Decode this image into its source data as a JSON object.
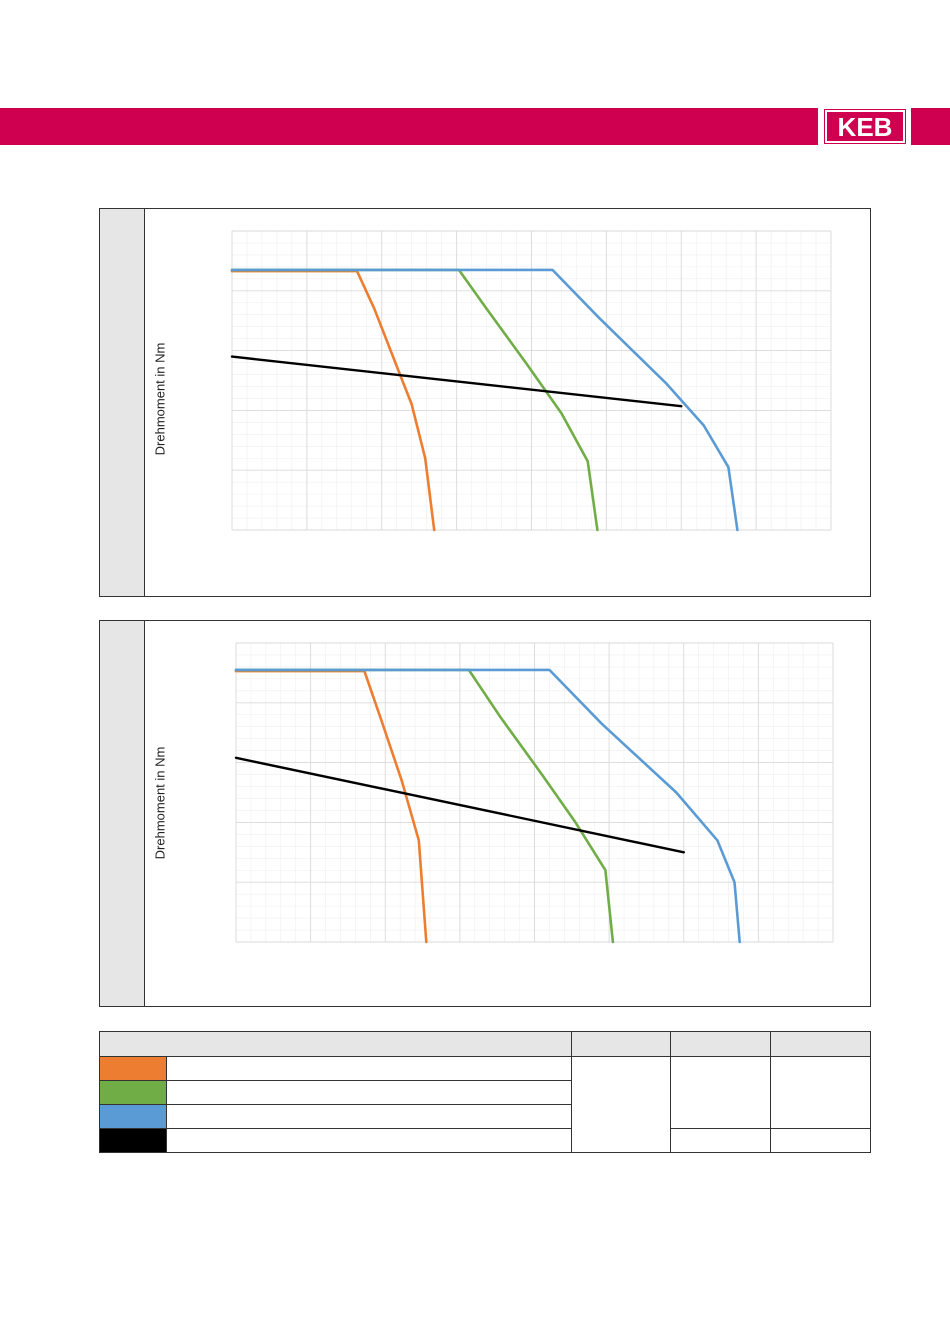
{
  "header": {
    "logo_text": "KEB",
    "brand_color": "#cf0050"
  },
  "colors": {
    "orange": "#ed7d31",
    "green": "#70ad47",
    "blue": "#5b9bd5",
    "black": "#000000",
    "grid": "#d9d9d9"
  },
  "chart_data": [
    {
      "type": "line",
      "title": "",
      "xlabel": "",
      "ylabel": "Drehmoment in Nm",
      "grid": true,
      "xlim": [
        0,
        8
      ],
      "ylim": [
        0,
        5
      ],
      "series": [
        {
          "color": "#ed7d31",
          "points": [
            [
              0,
              4.33
            ],
            [
              1.67,
              4.33
            ],
            [
              1.9,
              3.7
            ],
            [
              2.15,
              2.9
            ],
            [
              2.4,
              2.1
            ],
            [
              2.58,
              1.2
            ],
            [
              2.7,
              0
            ]
          ]
        },
        {
          "color": "#70ad47",
          "points": [
            [
              0,
              4.35
            ],
            [
              3.03,
              4.35
            ],
            [
              3.4,
              3.7
            ],
            [
              3.95,
              2.75
            ],
            [
              4.4,
              1.95
            ],
            [
              4.75,
              1.15
            ],
            [
              4.88,
              0
            ]
          ]
        },
        {
          "color": "#5b9bd5",
          "points": [
            [
              0,
              4.35
            ],
            [
              4.28,
              4.35
            ],
            [
              4.9,
              3.55
            ],
            [
              5.8,
              2.45
            ],
            [
              6.3,
              1.75
            ],
            [
              6.63,
              1.05
            ],
            [
              6.75,
              0
            ]
          ]
        },
        {
          "color": "#000000",
          "points": [
            [
              0,
              2.9
            ],
            [
              6.0,
              2.07
            ]
          ]
        }
      ]
    },
    {
      "type": "line",
      "title": "",
      "xlabel": "",
      "ylabel": "Drehmoment in Nm",
      "grid": true,
      "xlim": [
        0,
        8
      ],
      "ylim": [
        0,
        5
      ],
      "series": [
        {
          "color": "#ed7d31",
          "points": [
            [
              0,
              4.53
            ],
            [
              1.72,
              4.53
            ],
            [
              1.95,
              3.7
            ],
            [
              2.22,
              2.7
            ],
            [
              2.45,
              1.7
            ],
            [
              2.55,
              0
            ]
          ]
        },
        {
          "color": "#70ad47",
          "points": [
            [
              0,
              4.55
            ],
            [
              3.12,
              4.55
            ],
            [
              3.55,
              3.75
            ],
            [
              4.1,
              2.8
            ],
            [
              4.55,
              2.0
            ],
            [
              4.95,
              1.2
            ],
            [
              5.05,
              0
            ]
          ]
        },
        {
          "color": "#5b9bd5",
          "points": [
            [
              0,
              4.55
            ],
            [
              4.2,
              4.55
            ],
            [
              4.9,
              3.65
            ],
            [
              5.9,
              2.5
            ],
            [
              6.45,
              1.7
            ],
            [
              6.68,
              1.0
            ],
            [
              6.75,
              0
            ]
          ]
        },
        {
          "color": "#000000",
          "points": [
            [
              0,
              3.08
            ],
            [
              6.0,
              1.5
            ]
          ]
        }
      ]
    }
  ],
  "legend_table": {
    "headers": [
      "",
      "",
      "",
      ""
    ],
    "rows": [
      {
        "color": "#ed7d31",
        "label": ""
      },
      {
        "color": "#70ad47",
        "label": ""
      },
      {
        "color": "#5b9bd5",
        "label": ""
      },
      {
        "color": "#000000",
        "label": ""
      }
    ]
  }
}
